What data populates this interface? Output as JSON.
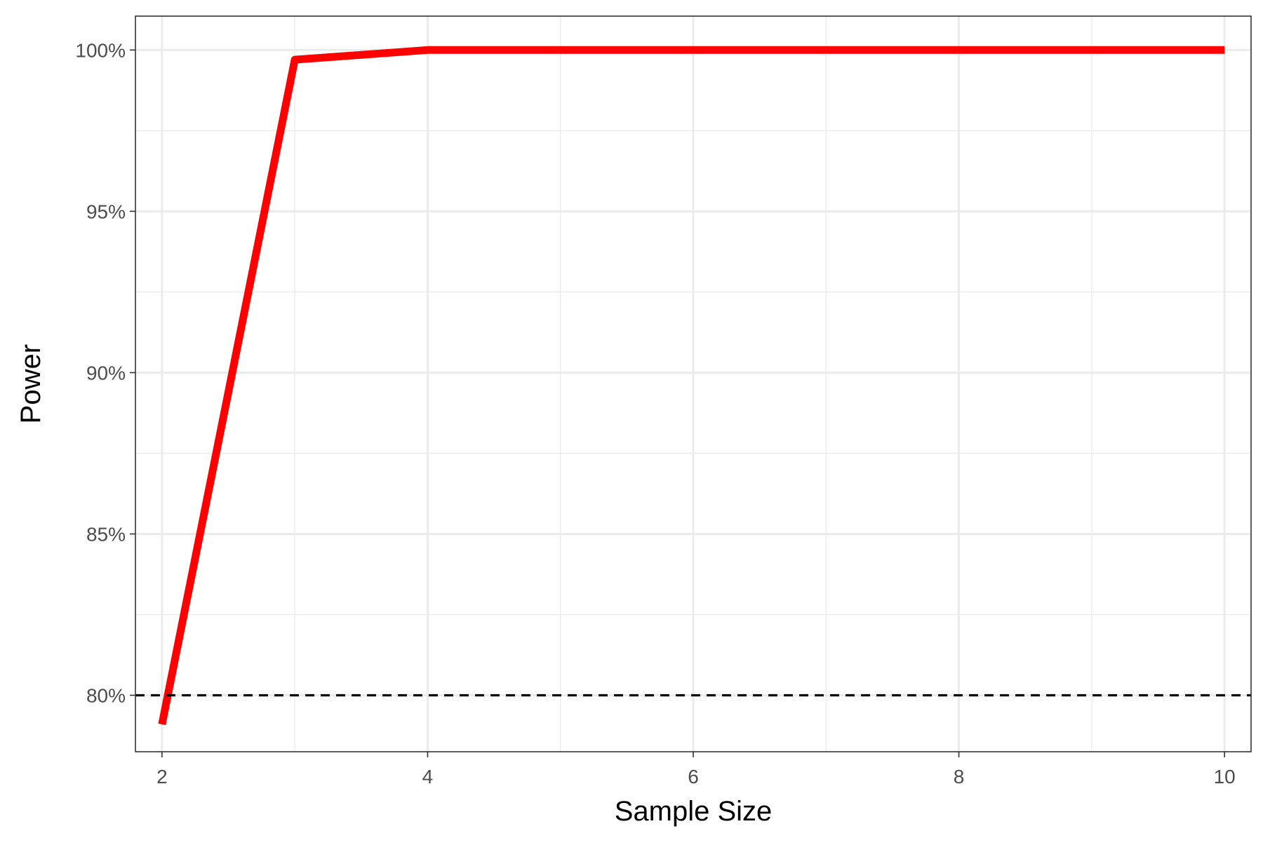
{
  "chart_data": {
    "type": "line",
    "title": "",
    "xlabel": "Sample Size",
    "ylabel": "Power",
    "xlim": [
      1.8,
      10.2
    ],
    "ylim": [
      0.7825,
      1.0105
    ],
    "x_ticks": [
      2,
      4,
      6,
      8,
      10
    ],
    "x_tick_labels": [
      "2",
      "4",
      "6",
      "8",
      "10"
    ],
    "y_ticks": [
      0.8,
      0.85,
      0.9,
      0.95,
      1.0
    ],
    "y_tick_labels": [
      "80%",
      "85%",
      "90%",
      "95%",
      "100%"
    ],
    "x_minor_gridlines": [
      3,
      5,
      7,
      9
    ],
    "y_minor_gridlines": [
      0.825,
      0.875,
      0.925,
      0.975
    ],
    "grid": true,
    "legend": "none",
    "series": [
      {
        "x": [
          2,
          3,
          4,
          5,
          6,
          7,
          8,
          9,
          10
        ],
        "y": [
          0.791,
          0.997,
          1.0,
          1.0,
          1.0,
          1.0,
          1.0,
          1.0,
          1.0
        ],
        "color": "#FF0000"
      }
    ],
    "reference_lines": [
      {
        "axis": "y",
        "value": 0.8,
        "style": "dashed",
        "color": "#000000"
      }
    ]
  }
}
